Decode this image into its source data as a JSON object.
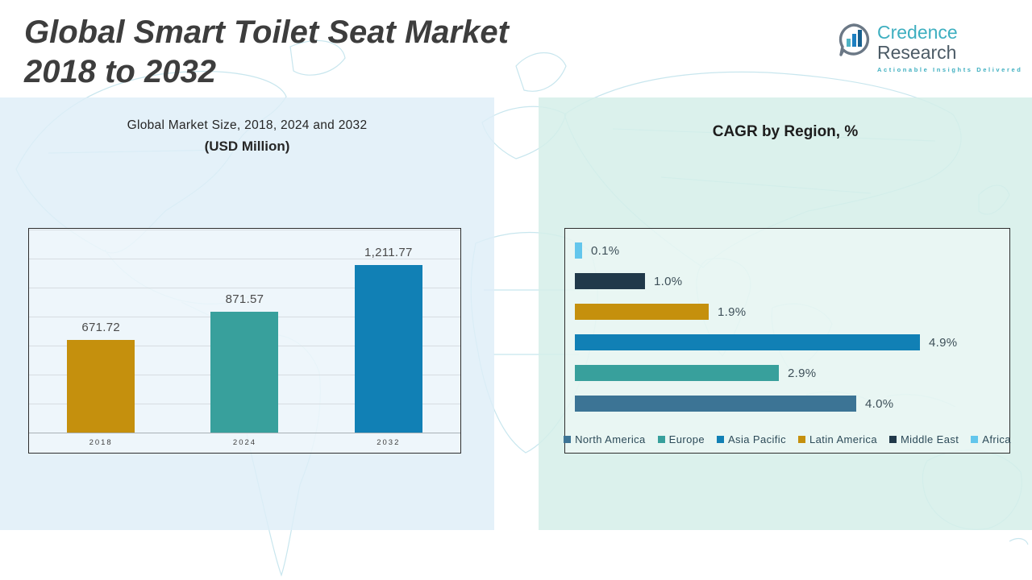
{
  "header": {
    "title_line1": "Global Smart Toilet Seat Market",
    "title_line2": "2018 to 2032",
    "logo": {
      "brand_primary": "Credence",
      "brand_secondary": "Research",
      "tagline": "Actionable Insights Delivered",
      "icon": "bar-chart-bubble-icon",
      "brand_primary_color": "#3eafc0",
      "brand_secondary_color": "#4c5b66"
    }
  },
  "chart_data": [
    {
      "type": "bar",
      "title": "Global Market Size, 2018, 2024 and 2032",
      "subtitle": "(USD Million)",
      "categories": [
        "2018",
        "2024",
        "2032"
      ],
      "values": [
        671.72,
        871.57,
        1211.77
      ],
      "value_labels": [
        "671.72",
        "871.57",
        "1,211.77"
      ],
      "bar_colors": [
        "#C5900D",
        "#38A09C",
        "#1180B5"
      ],
      "ylim": [
        0,
        1480
      ],
      "grid": true,
      "legend_position": "none"
    },
    {
      "type": "bar-horizontal",
      "title": "CAGR by Region, %",
      "categories": [
        "Africa",
        "Middle East",
        "Latin America",
        "Asia Pacific",
        "Europe",
        "North America"
      ],
      "values": [
        0.1,
        1.0,
        1.9,
        4.9,
        2.9,
        4.0
      ],
      "value_labels": [
        "0.1%",
        "1.0%",
        "1.9%",
        "4.9%",
        "2.9%",
        "4.0%"
      ],
      "bar_colors": [
        "#63C6EC",
        "#21394A",
        "#C5900D",
        "#1180B5",
        "#38A09C",
        "#3C7495"
      ],
      "xlim": [
        0,
        6
      ],
      "grid": false,
      "legend_position": "bottom",
      "legend": [
        {
          "label": "North America",
          "color": "#3C7495"
        },
        {
          "label": "Europe",
          "color": "#38A09C"
        },
        {
          "label": "Asia Pacific",
          "color": "#1180B5"
        },
        {
          "label": "Latin America",
          "color": "#C5900D"
        },
        {
          "label": "Middle East",
          "color": "#21394A"
        },
        {
          "label": "Africa",
          "color": "#63C6EC"
        }
      ]
    }
  ]
}
